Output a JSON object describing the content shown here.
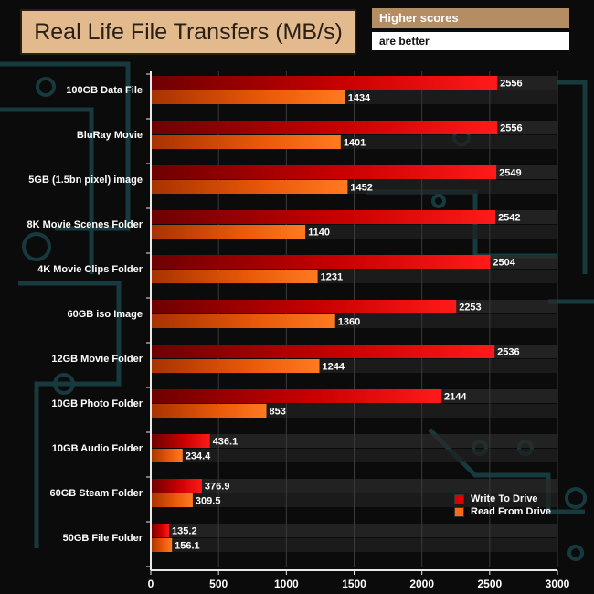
{
  "header": {
    "title": "Real Life File Transfers (MB/s)",
    "note_line1": "Higher scores",
    "note_line2": "are better"
  },
  "colors": {
    "write": "#e10000",
    "write_dark": "#7a0000",
    "read": "#ff6a10",
    "read_dark": "#b03a00",
    "title_bg": "#e2ba8e",
    "note_bg": "#b48d63"
  },
  "chart_data": {
    "type": "bar",
    "orientation": "horizontal",
    "title": "Real Life File Transfers (MB/s)",
    "categories": [
      "100GB Data File",
      "BluRay Movie",
      "5GB (1.5bn pixel) image",
      "8K Movie Scenes Folder",
      "4K Movie Clips Folder",
      "60GB iso Image",
      "12GB Movie Folder",
      "10GB Photo Folder",
      "10GB Audio Folder",
      "60GB Steam Folder",
      "50GB File Folder"
    ],
    "series": [
      {
        "name": "Write To  Drive",
        "values": [
          2556,
          2556,
          2549,
          2542,
          2504,
          2253,
          2536,
          2144,
          436.1,
          376.9,
          135.2
        ],
        "labels": [
          "2556",
          "2556",
          "2549",
          "2542",
          "2504",
          "2253",
          "2536",
          "2144",
          "436.1",
          "376.9",
          "135.2"
        ]
      },
      {
        "name": "Read From  Drive",
        "values": [
          1434,
          1401,
          1452,
          1140,
          1231,
          1360,
          1244,
          853,
          234.4,
          309.5,
          156.1
        ],
        "labels": [
          "1434",
          "1401",
          "1452",
          "1140",
          "1231",
          "1360",
          "1244",
          "853",
          "234.4",
          "309.5",
          "156.1"
        ]
      }
    ],
    "xlim": [
      0,
      3000
    ],
    "xticks": [
      0,
      500,
      1000,
      1500,
      2000,
      2500,
      3000
    ],
    "xlabel": "",
    "ylabel": "",
    "legend": "bottom-right"
  }
}
